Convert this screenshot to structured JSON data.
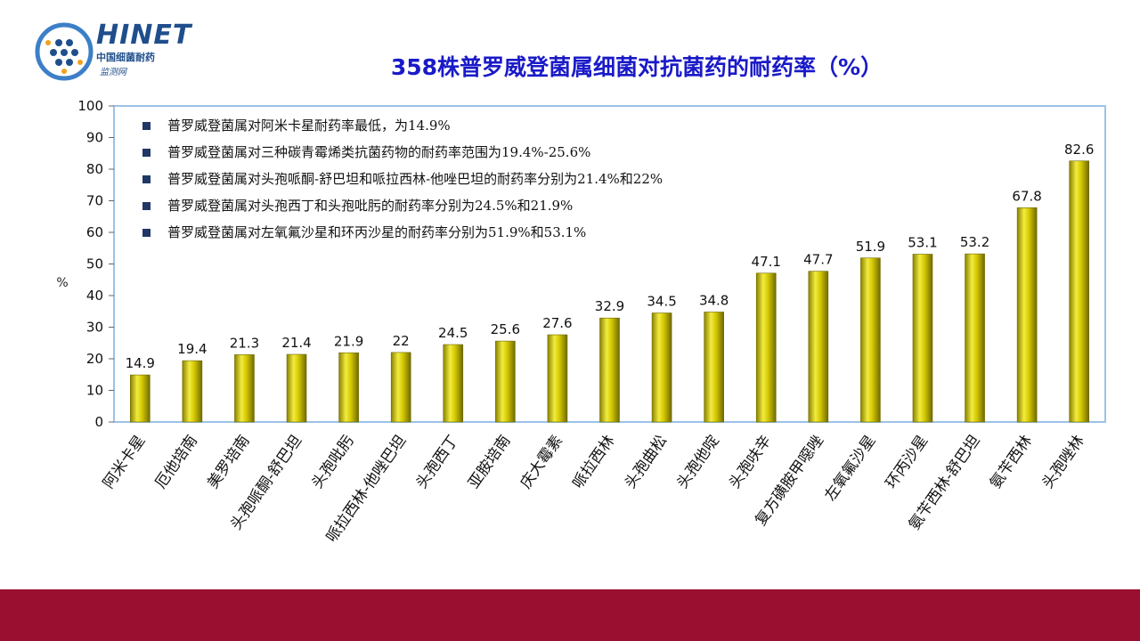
{
  "logo": {
    "name": "HINET",
    "sub1": "中国细菌耐药",
    "sub2": "监测网"
  },
  "chart_data": {
    "type": "bar",
    "title": "358株普罗威登菌属细菌对抗菌药的耐药率（%）",
    "ylabel": "%",
    "xlabel": "",
    "ylim": [
      0,
      100
    ],
    "yticks": [
      0,
      10,
      20,
      30,
      40,
      50,
      60,
      70,
      80,
      90,
      100
    ],
    "categories": [
      "阿米卡星",
      "厄他培南",
      "美罗培南",
      "头孢哌酮-舒巴坦",
      "头孢吡肟",
      "哌拉西林-他唑巴坦",
      "头孢西丁",
      "亚胺培南",
      "庆大霉素",
      "哌拉西林",
      "头孢曲松",
      "头孢他啶",
      "头孢呋辛",
      "复方磺胺甲噁唑",
      "左氧氟沙星",
      "环丙沙星",
      "氨苄西林-舒巴坦",
      "氨苄西林",
      "头孢唑林"
    ],
    "values": [
      14.9,
      19.4,
      21.3,
      21.4,
      21.9,
      22,
      24.5,
      25.6,
      27.6,
      32.9,
      34.5,
      34.8,
      47.1,
      47.7,
      51.9,
      53.1,
      53.2,
      67.8,
      82.6
    ],
    "value_labels": [
      "14.9",
      "19.4",
      "21.3",
      "21.4",
      "21.9",
      "22",
      "24.5",
      "25.6",
      "27.6",
      "32.9",
      "34.5",
      "34.8",
      "47.1",
      "47.7",
      "51.9",
      "53.1",
      "53.2",
      "67.8",
      "82.6"
    ],
    "bar_color": "#d4c800",
    "annotations": [
      "普罗威登菌属对阿米卡星耐药率最低，为14.9%",
      "普罗威登菌属对三种碳青霉烯类抗菌药物的耐药率范围为19.4%-25.6%",
      "普罗威登菌属对头孢哌酮-舒巴坦和哌拉西林-他唑巴坦的耐药率分别为21.4%和22%",
      "普罗威登菌属对头孢西丁和头孢吡肟的耐药率分别为24.5%和21.9%",
      "普罗威登菌属对左氧氟沙星和环丙沙星的耐药率分别为51.9%和53.1%"
    ]
  },
  "colors": {
    "title": "#1a1ac8",
    "frame": "#9cc3e6",
    "band": "#9a0f2f",
    "bullet": "#1f3864"
  }
}
